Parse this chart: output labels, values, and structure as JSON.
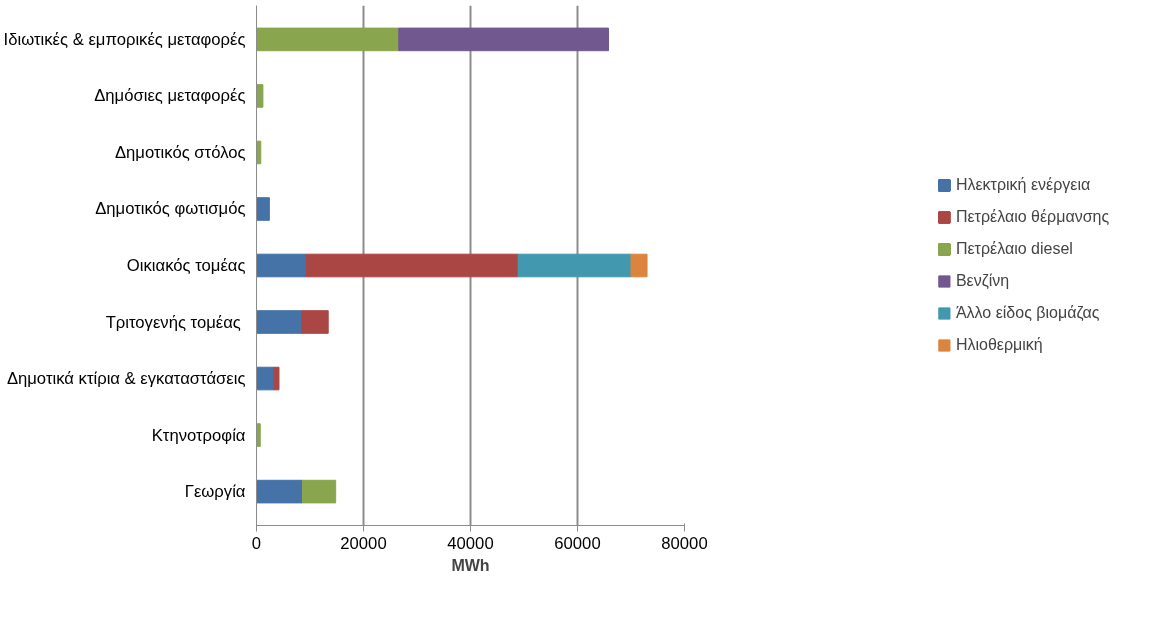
{
  "chart_data": {
    "type": "bar",
    "orientation": "horizontal",
    "stacked": true,
    "categories": [
      "Ιδιωτικές & εμπορικές μεταφορές",
      "Δημόσιες μεταφορές",
      "Δημοτικός στόλος",
      "Δημοτικός φωτισμός",
      "Οικιακός τομέας",
      "Τριτογενής  τομέας",
      "Δημοτικά κτίρια & εγκαταστάσεις",
      "Κτηνοτροφία",
      "Γεωργία"
    ],
    "series": [
      {
        "name": "Ηλεκτρική ενέργεια",
        "color": "#4572a7",
        "values": [
          null,
          null,
          null,
          2400,
          9300,
          8500,
          3300,
          null,
          8600
        ]
      },
      {
        "name": "Πετρέλαιο θέρμανσης",
        "color": "#aa4643",
        "values": [
          null,
          null,
          null,
          null,
          39600,
          4900,
          900,
          null,
          null
        ]
      },
      {
        "name": "Πετρέλαιο diesel",
        "color": "#89a54e",
        "values": [
          26600,
          1200,
          800,
          null,
          null,
          null,
          null,
          700,
          6200
        ]
      },
      {
        "name": "Βενζίνη",
        "color": "#71588f",
        "values": [
          39200,
          null,
          null,
          null,
          null,
          null,
          null,
          null,
          null
        ]
      },
      {
        "name": "Άλλο είδος βιομάζας",
        "color": "#4198af",
        "values": [
          null,
          null,
          null,
          null,
          21100,
          null,
          null,
          null,
          null
        ]
      },
      {
        "name": "Ηλιοθερμική",
        "color": "#db843d",
        "values": [
          null,
          null,
          null,
          null,
          3000,
          null,
          null,
          null,
          null
        ]
      }
    ],
    "xlim": [
      0,
      80000
    ],
    "xticks": [
      0,
      20000,
      40000,
      60000,
      80000
    ],
    "xlabel": "MWh",
    "grid": "x",
    "legend": "right"
  }
}
